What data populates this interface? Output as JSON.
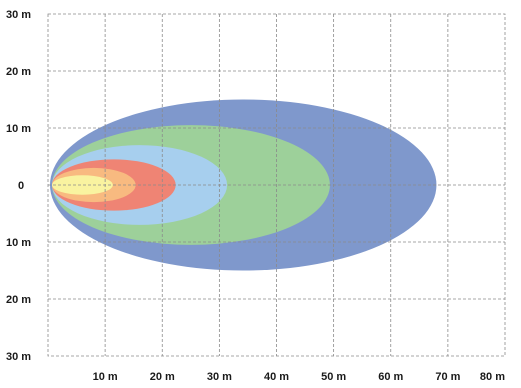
{
  "y_axis": {
    "labels": [
      "30 m",
      "20 m",
      "10 m",
      "0",
      "10 m",
      "20 m",
      "30 m"
    ]
  },
  "x_axis": {
    "labels": [
      "10 m",
      "20 m",
      "30 m",
      "40 m",
      "50 m",
      "60 m",
      "70 m",
      "80 m"
    ]
  },
  "zones": [
    {
      "name": "zone-outer",
      "color": "#7f98cc",
      "extent_m": 68,
      "half_width_m": 15
    },
    {
      "name": "zone-green",
      "color": "#9dd09a",
      "extent_m": 49,
      "half_width_m": 10.5
    },
    {
      "name": "zone-lightblue",
      "color": "#a7cfee",
      "extent_m": 31,
      "half_width_m": 7
    },
    {
      "name": "zone-red",
      "color": "#ef8474",
      "extent_m": 22,
      "half_width_m": 4.5
    },
    {
      "name": "zone-orange",
      "color": "#f8ba80",
      "extent_m": 15,
      "half_width_m": 3
    },
    {
      "name": "zone-yellow",
      "color": "#f9f3a0",
      "extent_m": 11,
      "half_width_m": 1.7
    }
  ]
}
